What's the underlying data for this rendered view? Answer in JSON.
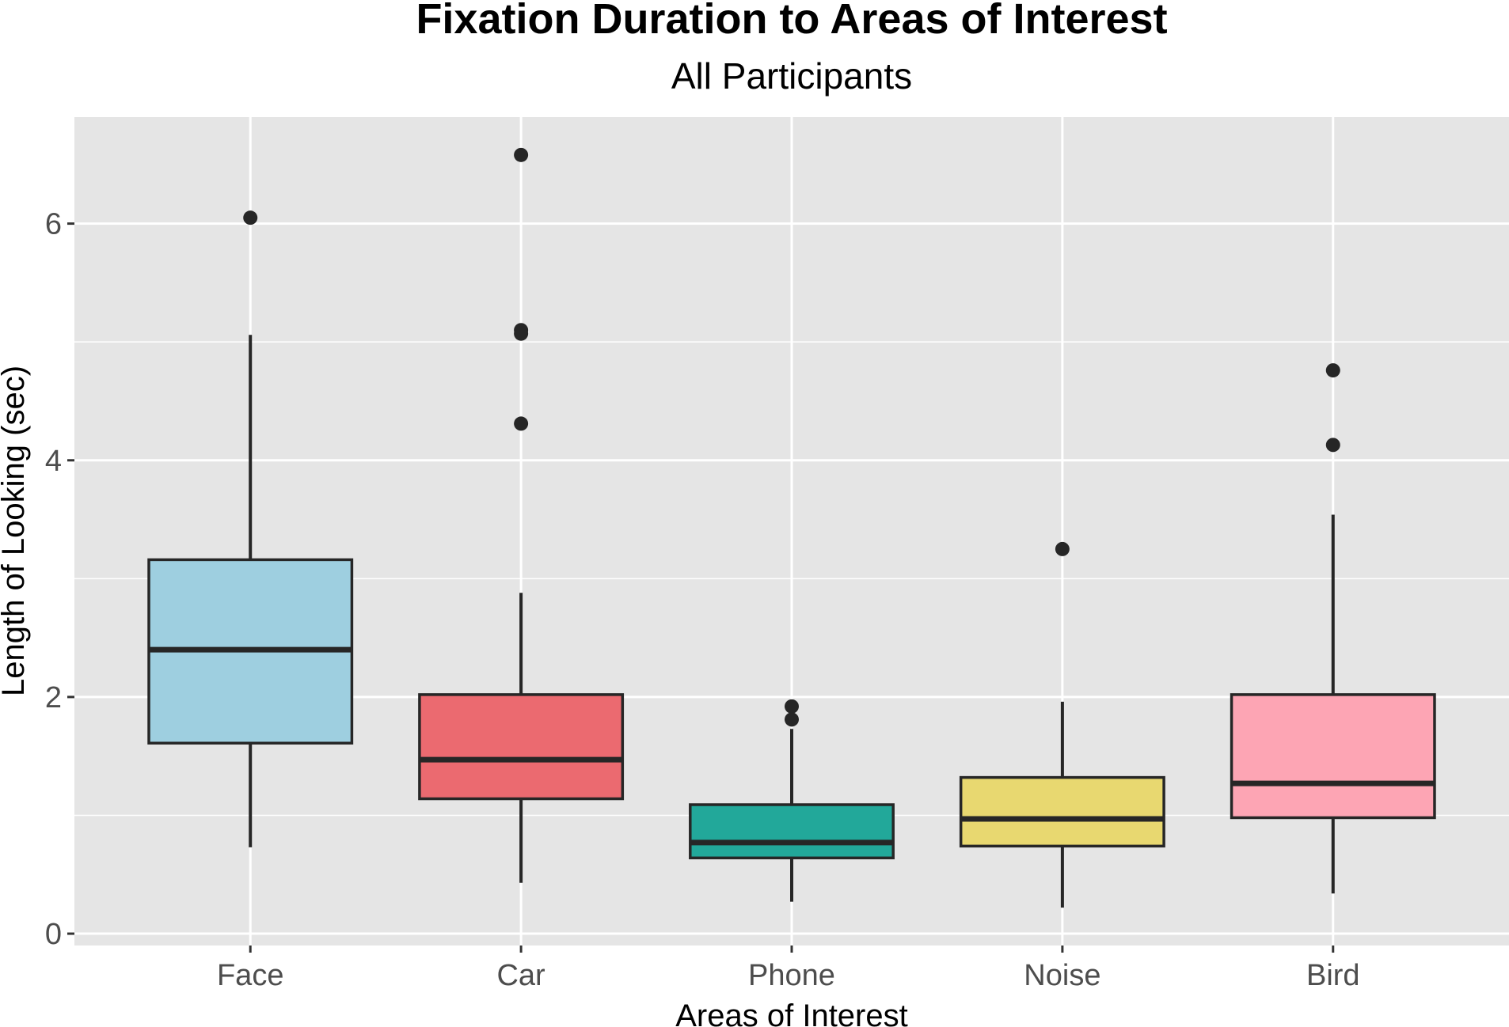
{
  "chart_data": {
    "type": "boxplot",
    "title": "Fixation Duration to Areas of Interest",
    "subtitle": "All Participants",
    "xlabel": "Areas of Interest",
    "ylabel": "Length of Looking (sec)",
    "ylim": [
      -0.1,
      6.9
    ],
    "yticks": [
      0,
      2,
      4,
      6
    ],
    "ytick_labels": [
      "0",
      "2",
      "4",
      "6"
    ],
    "grid": true,
    "legend": "none",
    "categories": [
      "Face",
      "Car",
      "Phone",
      "Noise",
      "Bird"
    ],
    "series": [
      {
        "category": "Face",
        "color": "#9ecfe0",
        "whisker_low": 0.73,
        "q1": 1.61,
        "median": 2.4,
        "q3": 3.16,
        "whisker_high": 5.06,
        "outliers": [
          6.05
        ]
      },
      {
        "category": "Car",
        "color": "#eb6a70",
        "whisker_low": 0.43,
        "q1": 1.14,
        "median": 1.47,
        "q3": 2.02,
        "whisker_high": 2.88,
        "outliers": [
          4.31,
          5.07,
          5.1,
          6.58
        ]
      },
      {
        "category": "Phone",
        "color": "#22a89a",
        "whisker_low": 0.27,
        "q1": 0.64,
        "median": 0.77,
        "q3": 1.09,
        "whisker_high": 1.73,
        "outliers": [
          1.81,
          1.92
        ]
      },
      {
        "category": "Noise",
        "color": "#e8d870",
        "whisker_low": 0.22,
        "q1": 0.74,
        "median": 0.97,
        "q3": 1.32,
        "whisker_high": 1.96,
        "outliers": [
          3.25
        ]
      },
      {
        "category": "Bird",
        "color": "#fda5b4",
        "whisker_low": 0.34,
        "q1": 0.98,
        "median": 1.27,
        "q3": 2.02,
        "whisker_high": 3.54,
        "outliers": [
          4.13,
          4.76
        ]
      }
    ]
  }
}
